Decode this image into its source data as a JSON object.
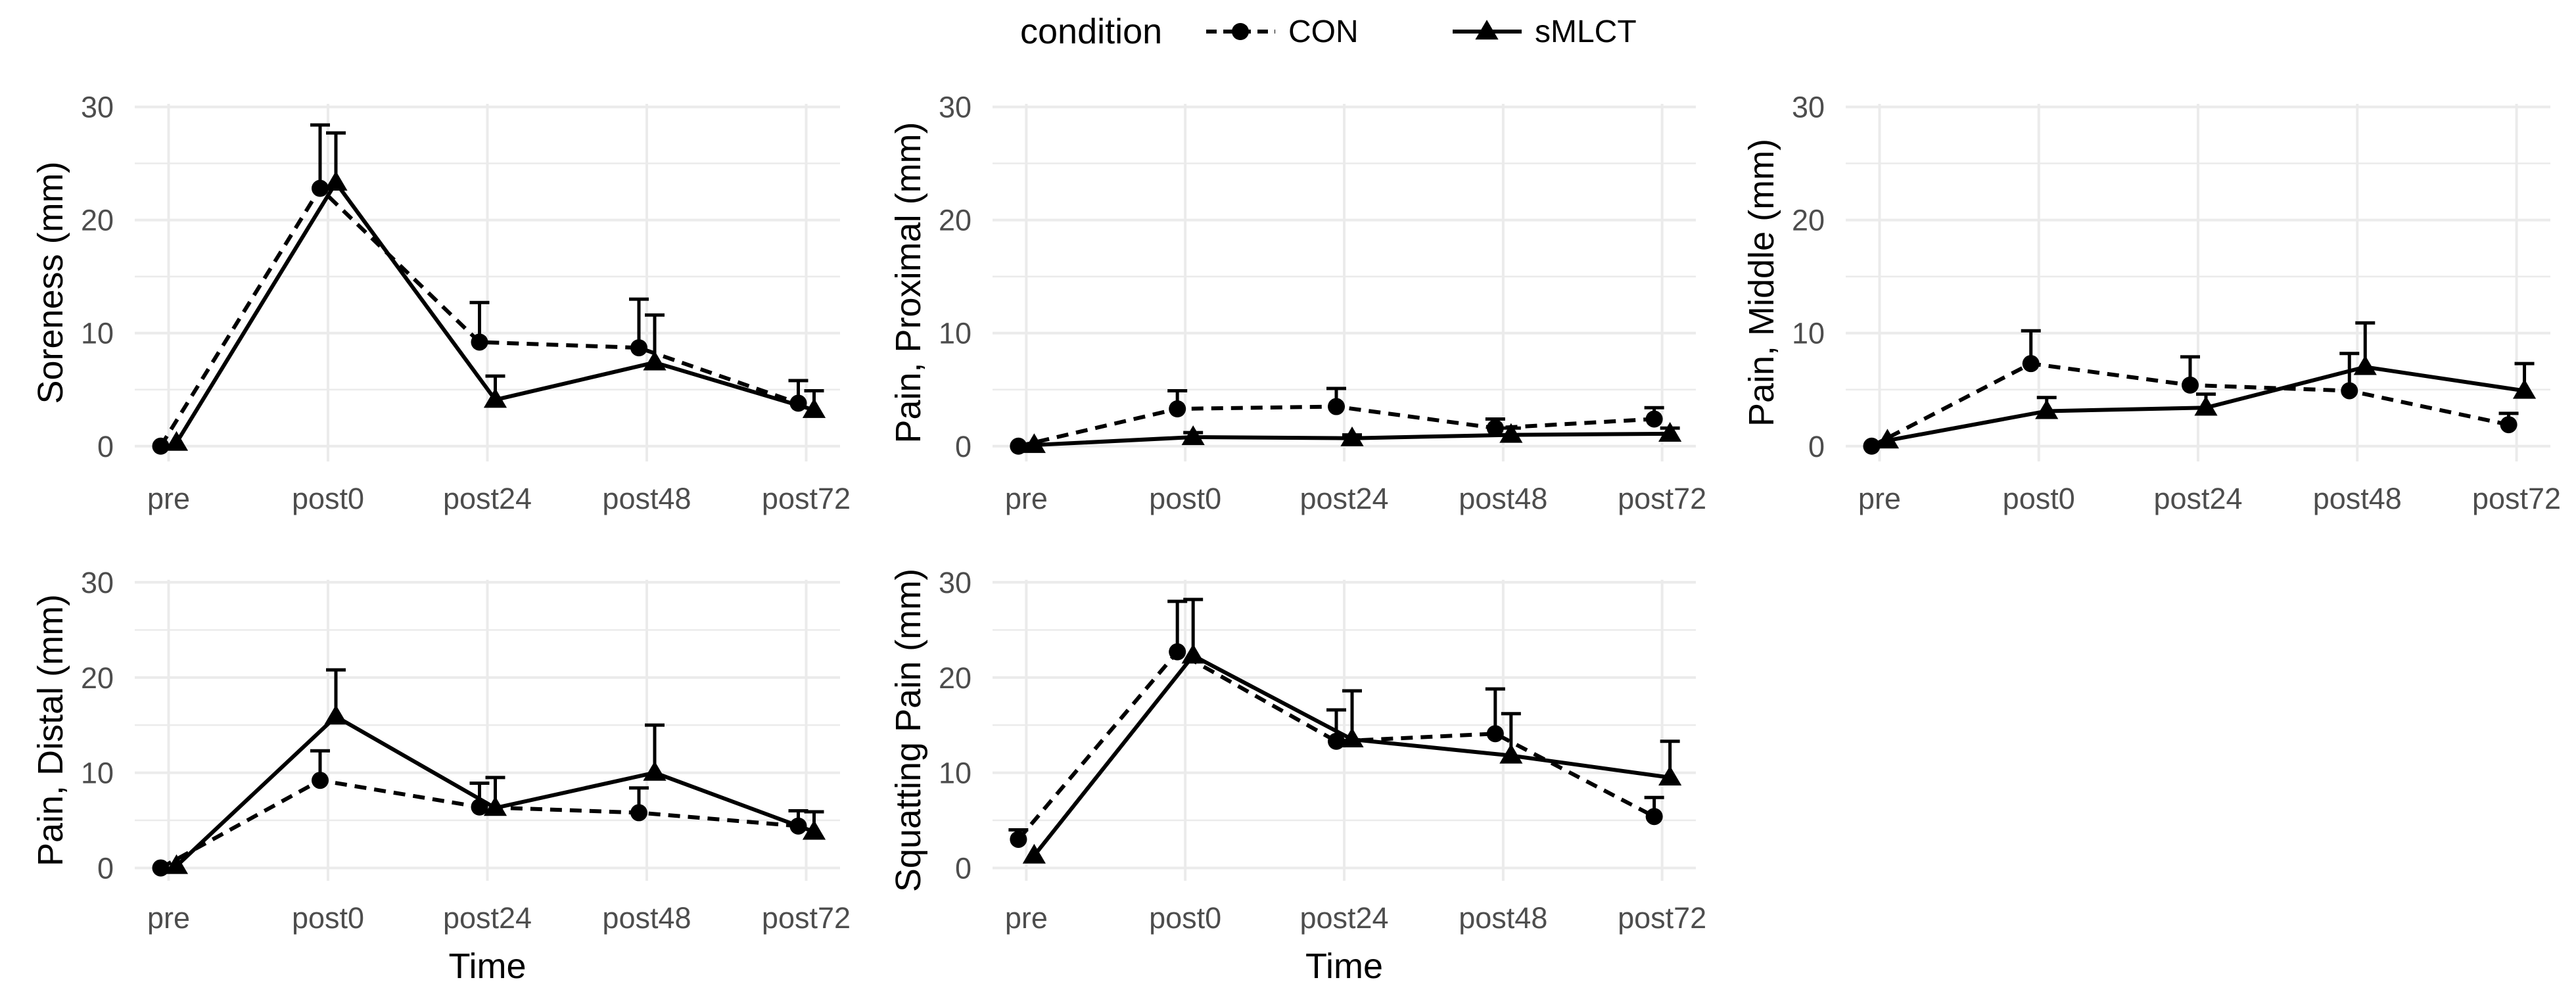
{
  "legend": {
    "title": "condition",
    "position": "top",
    "items": [
      {
        "label": "CON",
        "linetype": "dashed",
        "shape": "circle"
      },
      {
        "label": "sMLCT",
        "linetype": "solid",
        "shape": "triangle"
      }
    ]
  },
  "chart_data": [
    {
      "type": "line",
      "ylabel": "Soreness (mm)",
      "xlabel": "",
      "categories": [
        "pre",
        "post0",
        "post24",
        "post48",
        "post72"
      ],
      "ylim": [
        0,
        30
      ],
      "yticks": [
        0,
        10,
        20,
        30
      ],
      "grid": true,
      "series": [
        {
          "name": "CON",
          "values": [
            0,
            22.8,
            9.2,
            8.7,
            3.8
          ],
          "errors": [
            0,
            5.6,
            3.5,
            4.3,
            2.0
          ]
        },
        {
          "name": "sMLCT",
          "values": [
            0.3,
            23.3,
            4.1,
            7.4,
            3.2
          ],
          "errors": [
            0,
            4.4,
            2.1,
            4.2,
            1.7
          ]
        }
      ]
    },
    {
      "type": "line",
      "ylabel": "Pain, Proximal (mm)",
      "xlabel": "",
      "categories": [
        "pre",
        "post0",
        "post24",
        "post48",
        "post72"
      ],
      "ylim": [
        0,
        30
      ],
      "yticks": [
        0,
        10,
        20,
        30
      ],
      "grid": true,
      "series": [
        {
          "name": "CON",
          "values": [
            0,
            3.3,
            3.5,
            1.6,
            2.4
          ],
          "errors": [
            0,
            1.6,
            1.6,
            0.8,
            1.0
          ]
        },
        {
          "name": "sMLCT",
          "values": [
            0.1,
            0.8,
            0.7,
            1.0,
            1.1
          ],
          "errors": [
            0,
            0.4,
            0.3,
            0.6,
            0.5
          ]
        }
      ]
    },
    {
      "type": "line",
      "ylabel": "Pain, Middle (mm)",
      "xlabel": "",
      "categories": [
        "pre",
        "post0",
        "post24",
        "post48",
        "post72"
      ],
      "ylim": [
        0,
        30
      ],
      "yticks": [
        0,
        10,
        20,
        30
      ],
      "grid": true,
      "series": [
        {
          "name": "CON",
          "values": [
            0,
            7.3,
            5.4,
            4.9,
            1.9
          ],
          "errors": [
            0,
            2.9,
            2.5,
            3.3,
            1.0
          ]
        },
        {
          "name": "sMLCT",
          "values": [
            0.5,
            3.1,
            3.4,
            7.0,
            4.9
          ],
          "errors": [
            0,
            1.2,
            1.2,
            3.9,
            2.4
          ]
        }
      ]
    },
    {
      "type": "line",
      "ylabel": "Pain, Distal (mm)",
      "xlabel": "Time",
      "categories": [
        "pre",
        "post0",
        "post24",
        "post48",
        "post72"
      ],
      "ylim": [
        0,
        30
      ],
      "yticks": [
        0,
        10,
        20,
        30
      ],
      "grid": true,
      "series": [
        {
          "name": "CON",
          "values": [
            0,
            9.2,
            6.4,
            5.8,
            4.4
          ],
          "errors": [
            0,
            3.1,
            2.5,
            2.6,
            1.6
          ]
        },
        {
          "name": "sMLCT",
          "values": [
            0.2,
            15.9,
            6.3,
            10.0,
            3.8
          ],
          "errors": [
            0,
            4.9,
            3.2,
            5.0,
            2.1
          ]
        }
      ]
    },
    {
      "type": "line",
      "ylabel": "Squatting Pain (mm)",
      "xlabel": "Time",
      "categories": [
        "pre",
        "post0",
        "post24",
        "post48",
        "post72"
      ],
      "ylim": [
        0,
        30
      ],
      "yticks": [
        0,
        10,
        20,
        30
      ],
      "grid": true,
      "series": [
        {
          "name": "CON",
          "values": [
            3.0,
            22.7,
            13.3,
            14.1,
            5.4
          ],
          "errors": [
            1.0,
            5.3,
            3.3,
            4.7,
            2.0
          ]
        },
        {
          "name": "sMLCT",
          "values": [
            1.3,
            22.3,
            13.5,
            11.8,
            9.5
          ],
          "errors": [
            0,
            5.9,
            5.1,
            4.4,
            3.8
          ]
        }
      ]
    }
  ]
}
